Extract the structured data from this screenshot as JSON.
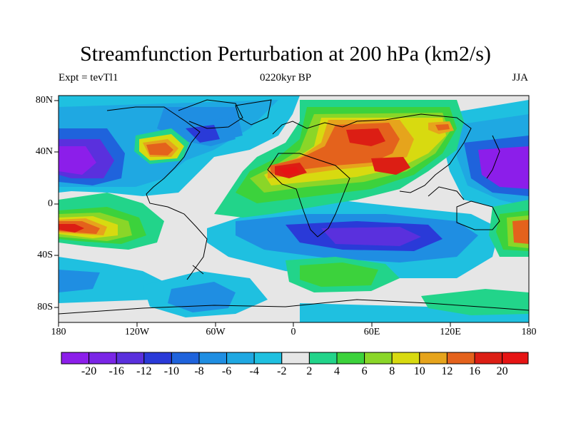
{
  "header": {
    "title": "Streamfunction Perturbation at 200 hPa (km2/s)",
    "left_label": "Expt = tevTl1",
    "center_label": "0220kyr BP",
    "right_label": "JJA"
  },
  "axes": {
    "lat_ticks": [
      "80N",
      "40N",
      "0",
      "40S",
      "80S"
    ],
    "lon_ticks": [
      "180",
      "120W",
      "60W",
      "0",
      "60E",
      "120E",
      "180"
    ]
  },
  "colorbar": {
    "labels": [
      "-20",
      "-16",
      "-12",
      "-10",
      "-8",
      "-6",
      "-4",
      "-2",
      "2",
      "4",
      "6",
      "8",
      "10",
      "12",
      "16",
      "20"
    ],
    "colors": [
      "#8c1eea",
      "#7a25e6",
      "#5a30dd",
      "#2a3ad8",
      "#1f63dc",
      "#1f8ee2",
      "#1fa8e2",
      "#1fc0e0",
      "#e6e6e6",
      "#22d48a",
      "#3cd23c",
      "#8ad628",
      "#d8da10",
      "#e6a41c",
      "#e4621c",
      "#dc1e14",
      "#e61414"
    ]
  },
  "map": {
    "ocean_background": "#e6e6e6",
    "features": [
      {
        "name": "north-pacific-low",
        "level": -20
      },
      {
        "name": "west-pacific-low",
        "level": -20
      },
      {
        "name": "north-america-high",
        "level": 16
      },
      {
        "name": "arctic-canada-low",
        "level": -16
      },
      {
        "name": "sahara-high",
        "level": 20
      },
      {
        "name": "arabia-high",
        "level": 20
      },
      {
        "name": "asia-high",
        "level": 16
      },
      {
        "name": "siberia-high",
        "level": 10
      },
      {
        "name": "south-pacific-high",
        "level": 20
      },
      {
        "name": "southern-indian-low",
        "level": -16
      },
      {
        "name": "south-atlantic-high",
        "level": 10
      },
      {
        "name": "antarctica-low",
        "level": -6
      }
    ]
  }
}
